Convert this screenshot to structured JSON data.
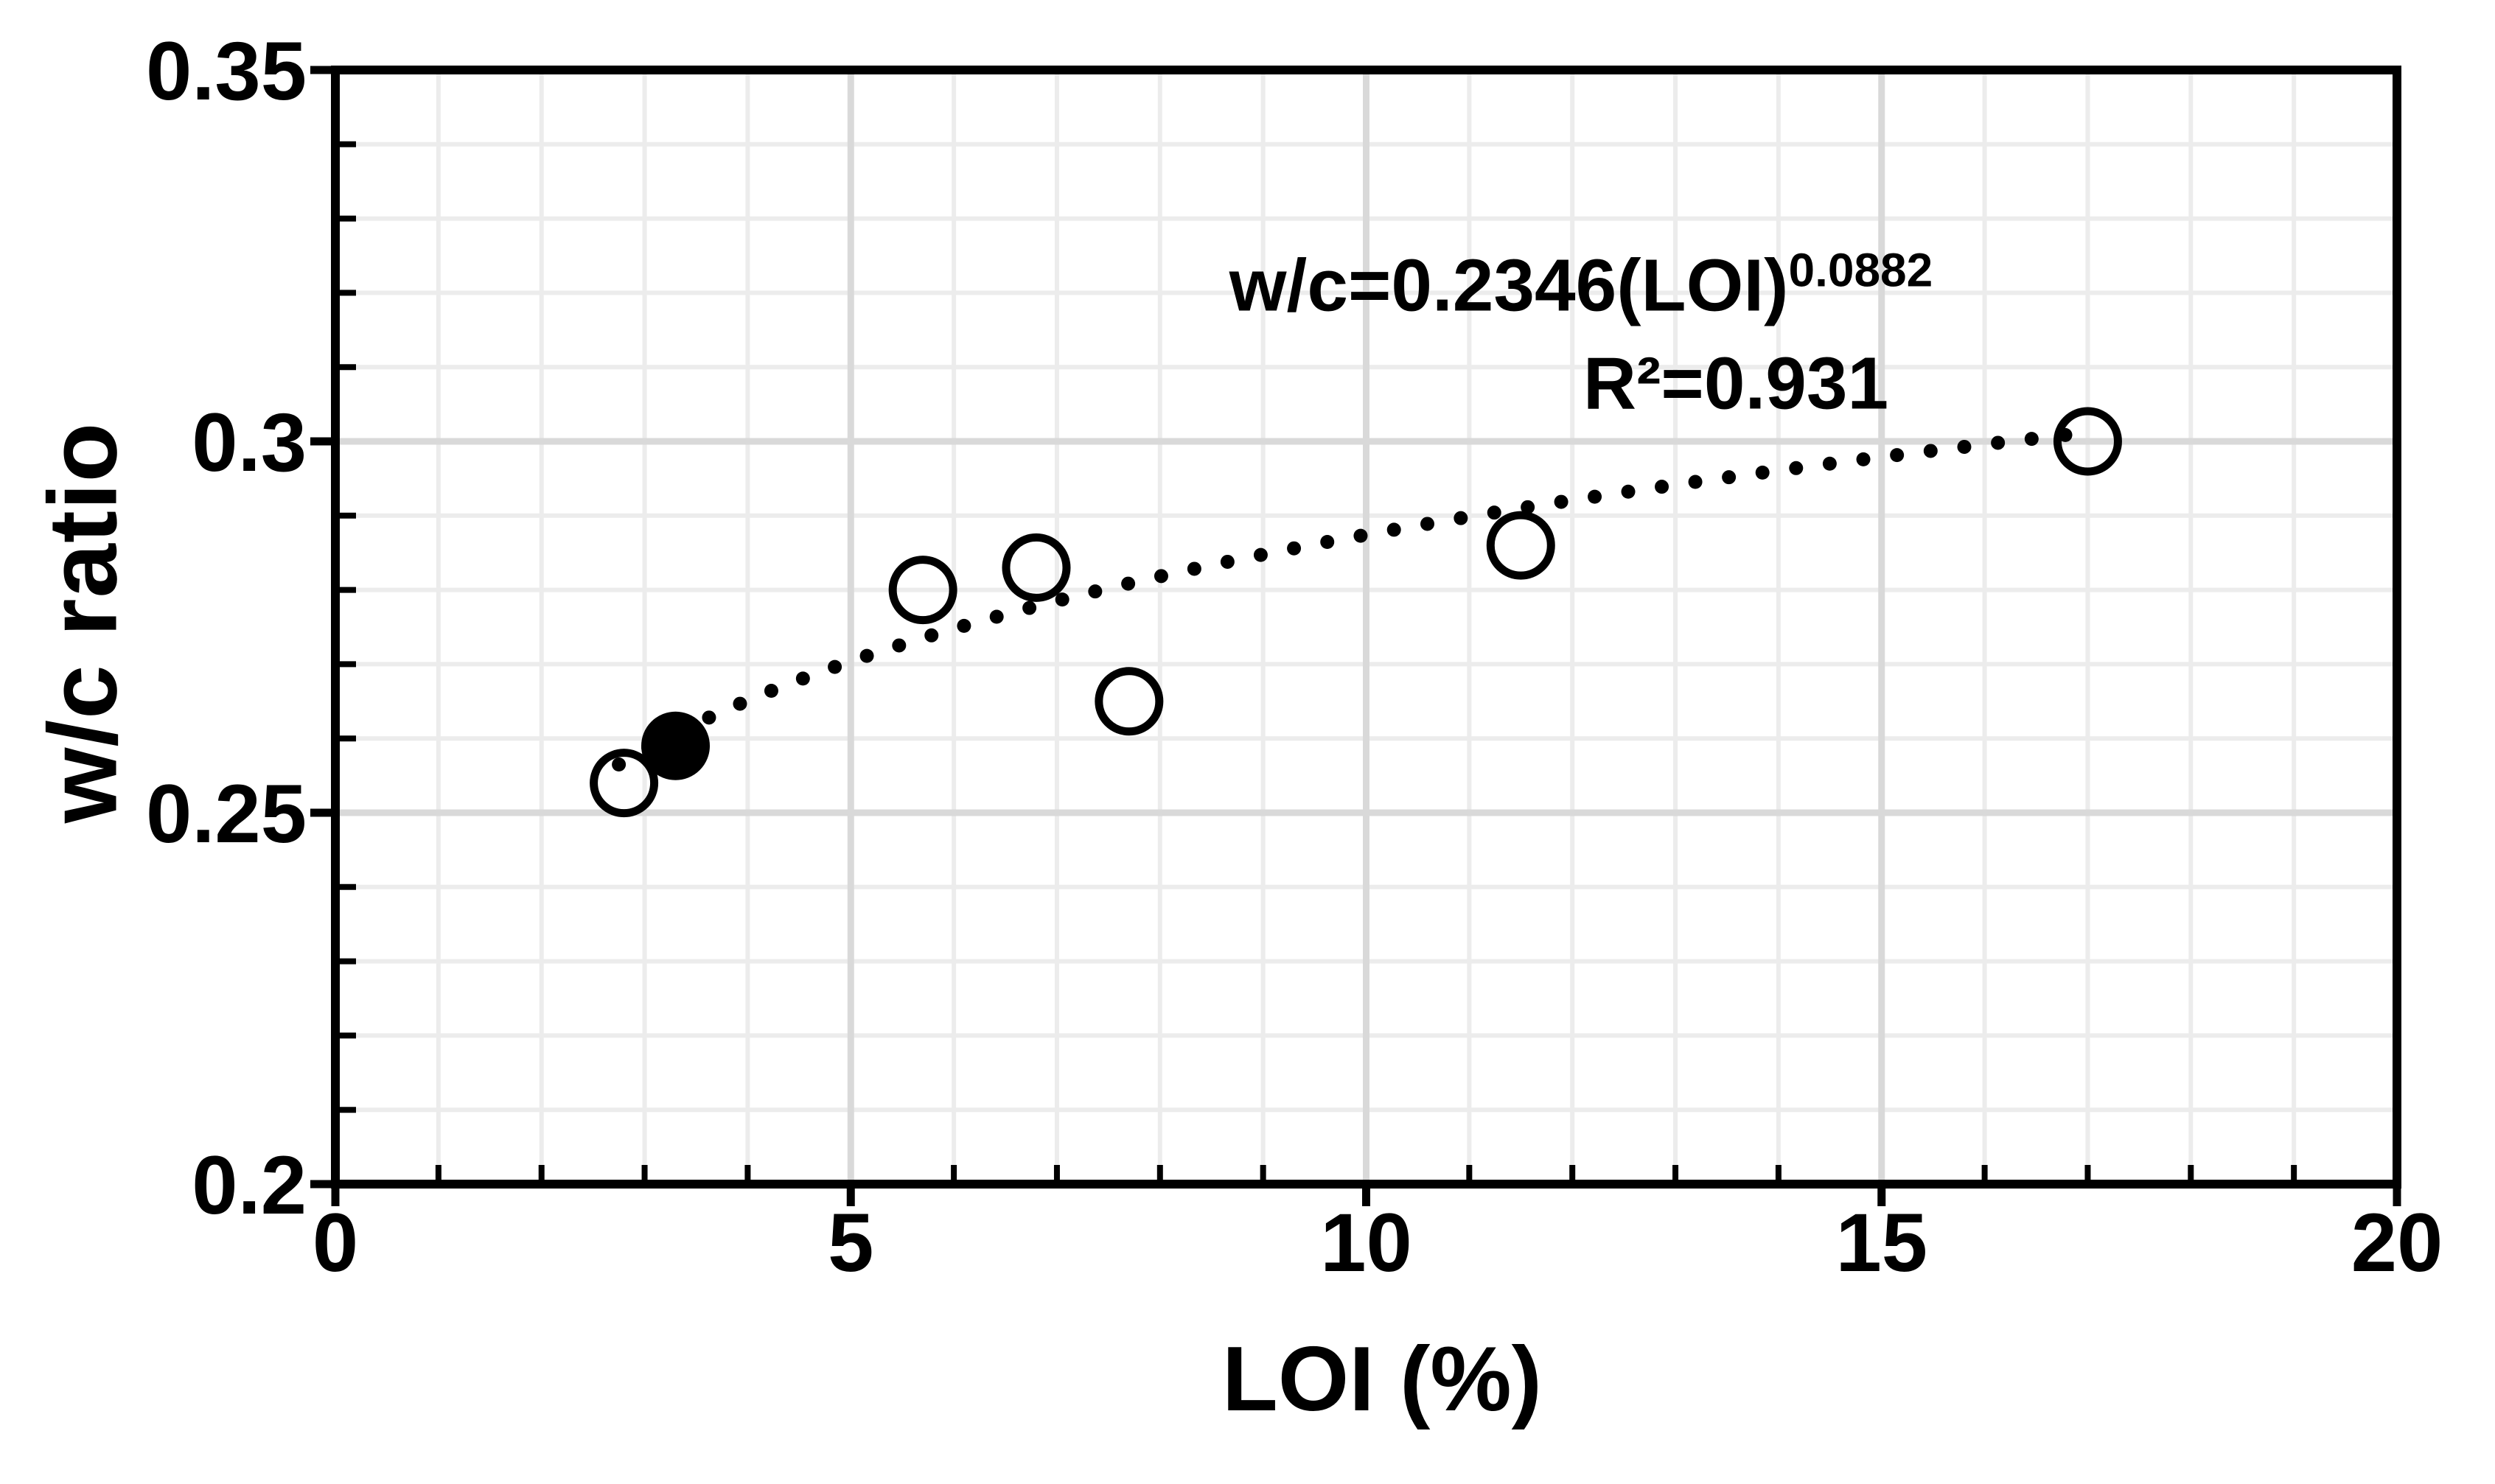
{
  "chart_data": {
    "type": "scatter",
    "title": "",
    "xlabel": "LOI (%)",
    "ylabel": "w/c ratio",
    "xlim": [
      0,
      20
    ],
    "ylim": [
      0.2,
      0.35
    ],
    "x_major_ticks": [
      0,
      5,
      10,
      15,
      20
    ],
    "x_tick_labels": [
      "0",
      "5",
      "10",
      "15",
      "20"
    ],
    "x_minor_step": 1,
    "y_major_ticks": [
      0.2,
      0.25,
      0.3,
      0.35
    ],
    "y_tick_labels": [
      "0.2",
      "0.25",
      "0.3",
      "0.35"
    ],
    "y_minor_step": 0.01,
    "grid": "minor and major gridlines on, light gray",
    "legend_position": "none",
    "points": [
      {
        "x": 2.8,
        "y": 0.254,
        "style": "open"
      },
      {
        "x": 3.3,
        "y": 0.259,
        "style": "filled"
      },
      {
        "x": 5.7,
        "y": 0.28,
        "style": "open"
      },
      {
        "x": 6.8,
        "y": 0.283,
        "style": "open"
      },
      {
        "x": 7.7,
        "y": 0.265,
        "style": "open"
      },
      {
        "x": 11.5,
        "y": 0.286,
        "style": "open"
      },
      {
        "x": 17.0,
        "y": 0.3,
        "style": "open"
      }
    ],
    "trendline": {
      "type": "power",
      "coefficient": 0.2346,
      "exponent": 0.0882,
      "x_start": 2.75,
      "x_end": 16.95,
      "style": "dotted"
    },
    "annotation": {
      "formula_base": "w/c=0.2346(LOI)",
      "formula_exponent": "0.0882",
      "r_squared": "R²=0.931"
    },
    "colors": {
      "foreground": "#000000",
      "background": "#ffffff",
      "grid_minor": "#ececec",
      "grid_major": "#d9d9d9"
    }
  }
}
